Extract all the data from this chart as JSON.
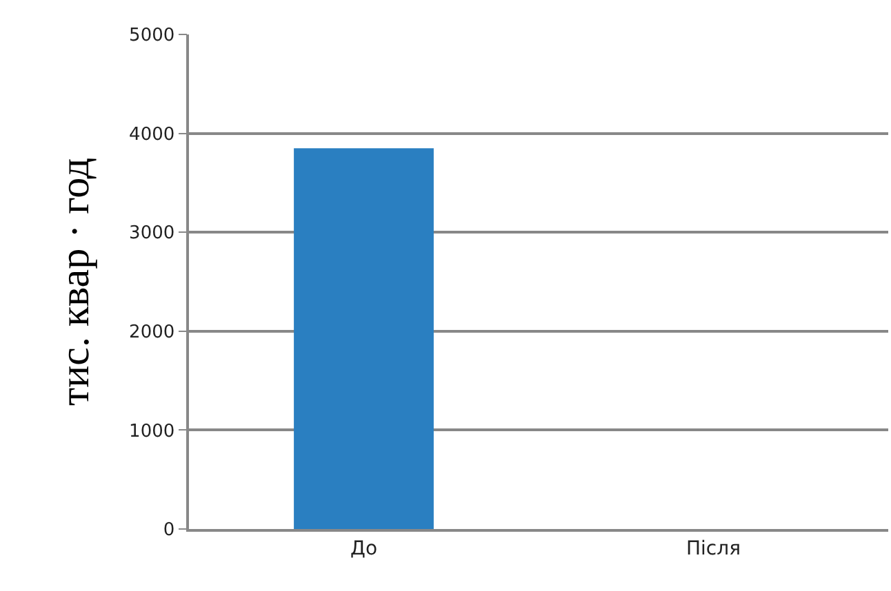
{
  "chart_data": {
    "type": "bar",
    "ylabel": "тис. квар · год",
    "categories": [
      "До",
      "Після"
    ],
    "values": [
      3850,
      0
    ],
    "color": "#2a7fc1",
    "ylim": [
      0,
      5000
    ],
    "yticks": [
      0,
      1000,
      2000,
      3000,
      4000,
      5000
    ],
    "grid": "y"
  }
}
